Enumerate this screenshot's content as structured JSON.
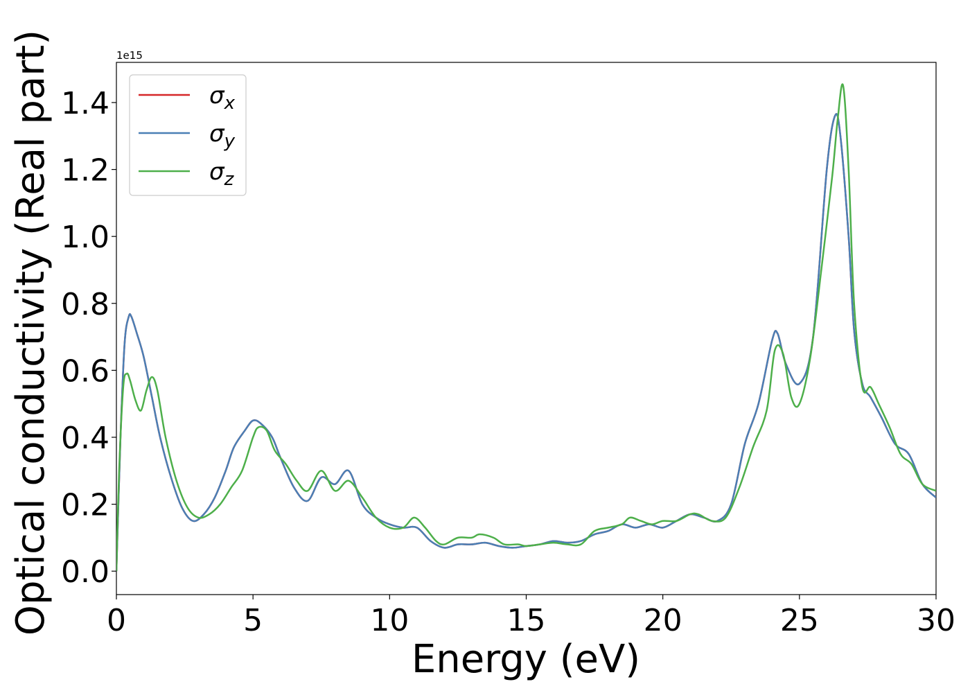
{
  "chart_data": {
    "type": "line",
    "xlabel": "Energy (eV)",
    "ylabel": "Optical conductivity (Real part)",
    "offset_label": "1e15",
    "xlim": [
      0,
      30
    ],
    "ylim": [
      -0.07,
      1.52
    ],
    "xticks": [
      0,
      5,
      10,
      15,
      20,
      25,
      30
    ],
    "yticks": [
      0.0,
      0.2,
      0.4,
      0.6,
      0.8,
      1.0,
      1.2,
      1.4
    ],
    "ytick_labels": [
      "0.0",
      "0.2",
      "0.4",
      "0.6",
      "0.8",
      "1.0",
      "1.2",
      "1.4"
    ],
    "grid": false,
    "legend_position": "top-left",
    "series": [
      {
        "name": "σx",
        "name_base": "σ",
        "name_sub": "x",
        "color": "#d62728",
        "x": [
          0,
          0.15,
          0.3,
          0.45,
          0.55,
          0.75,
          1.0,
          1.3,
          1.6,
          2.0,
          2.4,
          2.8,
          3.2,
          3.6,
          4.0,
          4.3,
          4.7,
          5.0,
          5.3,
          5.7,
          6.0,
          6.5,
          7.0,
          7.5,
          8.0,
          8.5,
          9.0,
          9.5,
          10.0,
          10.5,
          11.0,
          11.5,
          12.0,
          12.5,
          13.0,
          13.5,
          14.0,
          14.5,
          15.0,
          15.5,
          16.0,
          16.5,
          17.0,
          17.5,
          18.0,
          18.5,
          19.0,
          19.5,
          20.0,
          20.5,
          21.0,
          21.5,
          22.0,
          22.5,
          23.0,
          23.5,
          24.0,
          24.2,
          24.5,
          25.0,
          25.5,
          26.0,
          26.3,
          26.5,
          26.8,
          27.0,
          27.3,
          27.6,
          28.0,
          28.5,
          29.0,
          29.5,
          30.0
        ],
        "y": [
          0.0,
          0.4,
          0.68,
          0.76,
          0.76,
          0.71,
          0.64,
          0.52,
          0.4,
          0.28,
          0.19,
          0.15,
          0.17,
          0.22,
          0.3,
          0.37,
          0.42,
          0.45,
          0.44,
          0.4,
          0.34,
          0.25,
          0.21,
          0.28,
          0.26,
          0.3,
          0.2,
          0.16,
          0.14,
          0.13,
          0.13,
          0.09,
          0.07,
          0.08,
          0.08,
          0.085,
          0.075,
          0.07,
          0.075,
          0.08,
          0.09,
          0.085,
          0.09,
          0.11,
          0.12,
          0.14,
          0.13,
          0.14,
          0.13,
          0.15,
          0.17,
          0.16,
          0.15,
          0.2,
          0.38,
          0.5,
          0.69,
          0.71,
          0.62,
          0.56,
          0.7,
          1.2,
          1.36,
          1.3,
          1.0,
          0.72,
          0.56,
          0.52,
          0.46,
          0.38,
          0.35,
          0.26,
          0.22
        ]
      },
      {
        "name": "σy",
        "name_base": "σ",
        "name_sub": "y",
        "color": "#4a7fb5",
        "x": [
          0,
          0.15,
          0.3,
          0.45,
          0.55,
          0.75,
          1.0,
          1.3,
          1.6,
          2.0,
          2.4,
          2.8,
          3.2,
          3.6,
          4.0,
          4.3,
          4.7,
          5.0,
          5.3,
          5.7,
          6.0,
          6.5,
          7.0,
          7.5,
          8.0,
          8.5,
          9.0,
          9.5,
          10.0,
          10.5,
          11.0,
          11.5,
          12.0,
          12.5,
          13.0,
          13.5,
          14.0,
          14.5,
          15.0,
          15.5,
          16.0,
          16.5,
          17.0,
          17.5,
          18.0,
          18.5,
          19.0,
          19.5,
          20.0,
          20.5,
          21.0,
          21.5,
          22.0,
          22.5,
          23.0,
          23.5,
          24.0,
          24.2,
          24.5,
          25.0,
          25.5,
          26.0,
          26.3,
          26.5,
          26.8,
          27.0,
          27.3,
          27.6,
          28.0,
          28.5,
          29.0,
          29.5,
          30.0
        ],
        "y": [
          0.0,
          0.4,
          0.68,
          0.76,
          0.76,
          0.71,
          0.64,
          0.52,
          0.4,
          0.28,
          0.19,
          0.15,
          0.17,
          0.22,
          0.3,
          0.37,
          0.42,
          0.45,
          0.44,
          0.4,
          0.34,
          0.25,
          0.21,
          0.28,
          0.26,
          0.3,
          0.2,
          0.16,
          0.14,
          0.13,
          0.13,
          0.09,
          0.07,
          0.08,
          0.08,
          0.085,
          0.075,
          0.07,
          0.075,
          0.08,
          0.09,
          0.085,
          0.09,
          0.11,
          0.12,
          0.14,
          0.13,
          0.14,
          0.13,
          0.15,
          0.17,
          0.16,
          0.15,
          0.2,
          0.38,
          0.5,
          0.69,
          0.71,
          0.62,
          0.56,
          0.7,
          1.2,
          1.36,
          1.3,
          1.0,
          0.72,
          0.56,
          0.52,
          0.46,
          0.38,
          0.35,
          0.26,
          0.22
        ]
      },
      {
        "name": "σz",
        "name_base": "σ",
        "name_sub": "z",
        "color": "#4daf4a",
        "x": [
          0,
          0.1,
          0.25,
          0.38,
          0.5,
          0.7,
          0.9,
          1.1,
          1.3,
          1.5,
          1.8,
          2.2,
          2.6,
          3.0,
          3.4,
          3.8,
          4.2,
          4.6,
          5.0,
          5.2,
          5.5,
          5.8,
          6.2,
          6.6,
          7.0,
          7.5,
          8.0,
          8.5,
          9.0,
          9.5,
          10.0,
          10.5,
          10.9,
          11.3,
          11.7,
          12.0,
          12.5,
          13.0,
          13.3,
          13.8,
          14.2,
          14.7,
          15.0,
          15.5,
          16.0,
          16.5,
          17.0,
          17.5,
          18.0,
          18.5,
          18.8,
          19.2,
          19.6,
          20.0,
          20.5,
          21.0,
          21.3,
          21.8,
          22.3,
          22.8,
          23.3,
          23.8,
          24.1,
          24.4,
          24.7,
          25.0,
          25.4,
          25.8,
          26.2,
          26.4,
          26.6,
          26.8,
          27.0,
          27.3,
          27.6,
          27.9,
          28.3,
          28.7,
          29.1,
          29.5,
          30.0
        ],
        "y": [
          0.0,
          0.3,
          0.55,
          0.59,
          0.57,
          0.51,
          0.48,
          0.54,
          0.58,
          0.54,
          0.4,
          0.27,
          0.19,
          0.16,
          0.17,
          0.2,
          0.25,
          0.3,
          0.4,
          0.43,
          0.42,
          0.36,
          0.32,
          0.27,
          0.24,
          0.3,
          0.24,
          0.27,
          0.22,
          0.16,
          0.13,
          0.13,
          0.16,
          0.13,
          0.09,
          0.08,
          0.1,
          0.1,
          0.11,
          0.1,
          0.08,
          0.08,
          0.075,
          0.08,
          0.085,
          0.08,
          0.08,
          0.12,
          0.13,
          0.14,
          0.16,
          0.15,
          0.14,
          0.15,
          0.15,
          0.17,
          0.17,
          0.15,
          0.16,
          0.25,
          0.37,
          0.48,
          0.66,
          0.65,
          0.52,
          0.5,
          0.64,
          0.9,
          1.18,
          1.35,
          1.45,
          1.2,
          0.8,
          0.55,
          0.55,
          0.5,
          0.43,
          0.35,
          0.32,
          0.26,
          0.24
        ]
      }
    ]
  }
}
